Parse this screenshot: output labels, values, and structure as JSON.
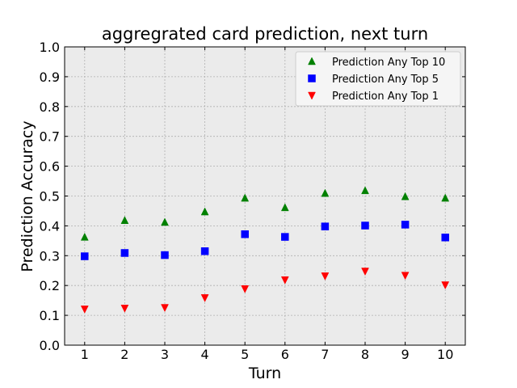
{
  "chart_data": {
    "type": "scatter",
    "title": "aggregrated card prediction, next turn",
    "xlabel": "Turn",
    "ylabel": "Prediction Accuracy",
    "x": [
      1,
      2,
      3,
      4,
      5,
      6,
      7,
      8,
      9,
      10
    ],
    "xlim": [
      0.5,
      10.5
    ],
    "ylim": [
      0.0,
      1.0
    ],
    "xticks": [
      "1",
      "2",
      "3",
      "4",
      "5",
      "6",
      "7",
      "8",
      "9",
      "10"
    ],
    "yticks": [
      "0.0",
      "0.1",
      "0.2",
      "0.3",
      "0.4",
      "0.5",
      "0.6",
      "0.7",
      "0.8",
      "0.9",
      "1.0"
    ],
    "grid": true,
    "legend_position": "top-right",
    "series": [
      {
        "name": "Prediction Any Top 10",
        "marker": "triangle-up",
        "color": "#008000",
        "values": [
          0.362,
          0.418,
          0.412,
          0.447,
          0.493,
          0.461,
          0.509,
          0.518,
          0.498,
          0.493
        ]
      },
      {
        "name": "Prediction Any Top 5",
        "marker": "square",
        "color": "#0000ff",
        "values": [
          0.298,
          0.309,
          0.302,
          0.315,
          0.372,
          0.363,
          0.398,
          0.401,
          0.404,
          0.361
        ]
      },
      {
        "name": "Prediction Any Top 1",
        "marker": "triangle-down",
        "color": "#ff0000",
        "values": [
          0.121,
          0.124,
          0.126,
          0.159,
          0.189,
          0.219,
          0.232,
          0.248,
          0.234,
          0.202
        ]
      }
    ]
  },
  "colors": {
    "plot_background": "#ebebeb",
    "grid": "#b0b0b0"
  }
}
